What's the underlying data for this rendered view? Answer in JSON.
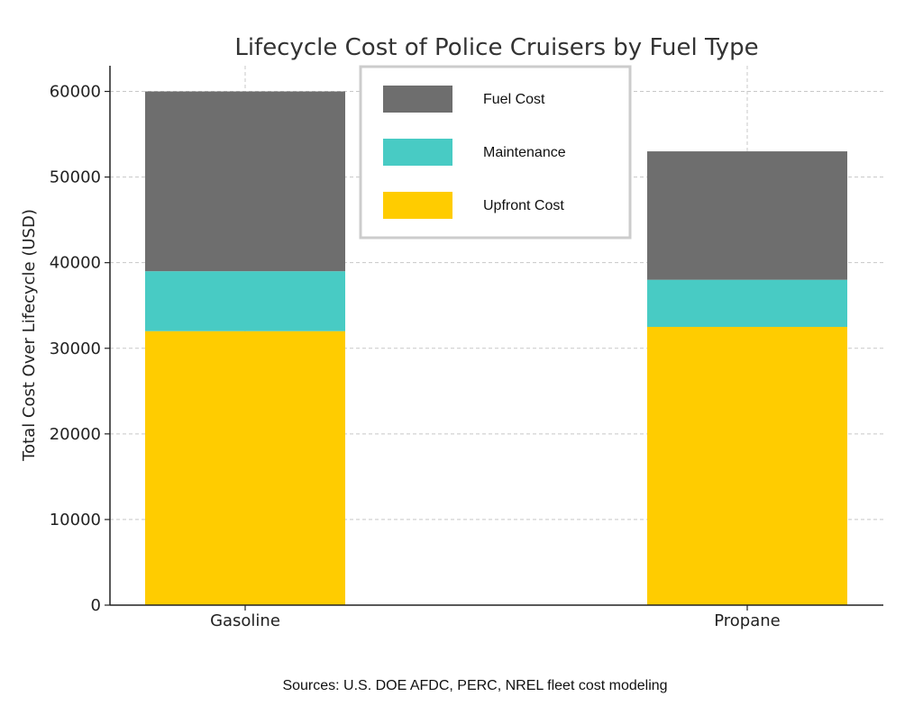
{
  "chart_data": {
    "type": "bar",
    "stacked": true,
    "title": "Lifecycle Cost of Police Cruisers by Fuel Type",
    "xlabel": "",
    "ylabel": "Total Cost Over Lifecycle (USD)",
    "categories": [
      "Gasoline",
      "Propane"
    ],
    "series": [
      {
        "name": "Upfront Cost",
        "values": [
          32000,
          32500
        ],
        "color": "#FFCC00"
      },
      {
        "name": "Maintenance",
        "values": [
          7000,
          5500
        ],
        "color": "#48CBC4"
      },
      {
        "name": "Fuel Cost",
        "values": [
          21000,
          15000
        ],
        "color": "#6E6E6E"
      }
    ],
    "ylim": [
      0,
      63000
    ],
    "yticks": [
      0,
      10000,
      20000,
      30000,
      40000,
      50000,
      60000
    ],
    "grid": true,
    "legend": {
      "placement": "top-center",
      "order": [
        "Fuel Cost",
        "Maintenance",
        "Upfront Cost"
      ]
    },
    "source_note": "Sources: U.S. DOE AFDC, PERC, NREL fleet cost modeling"
  }
}
